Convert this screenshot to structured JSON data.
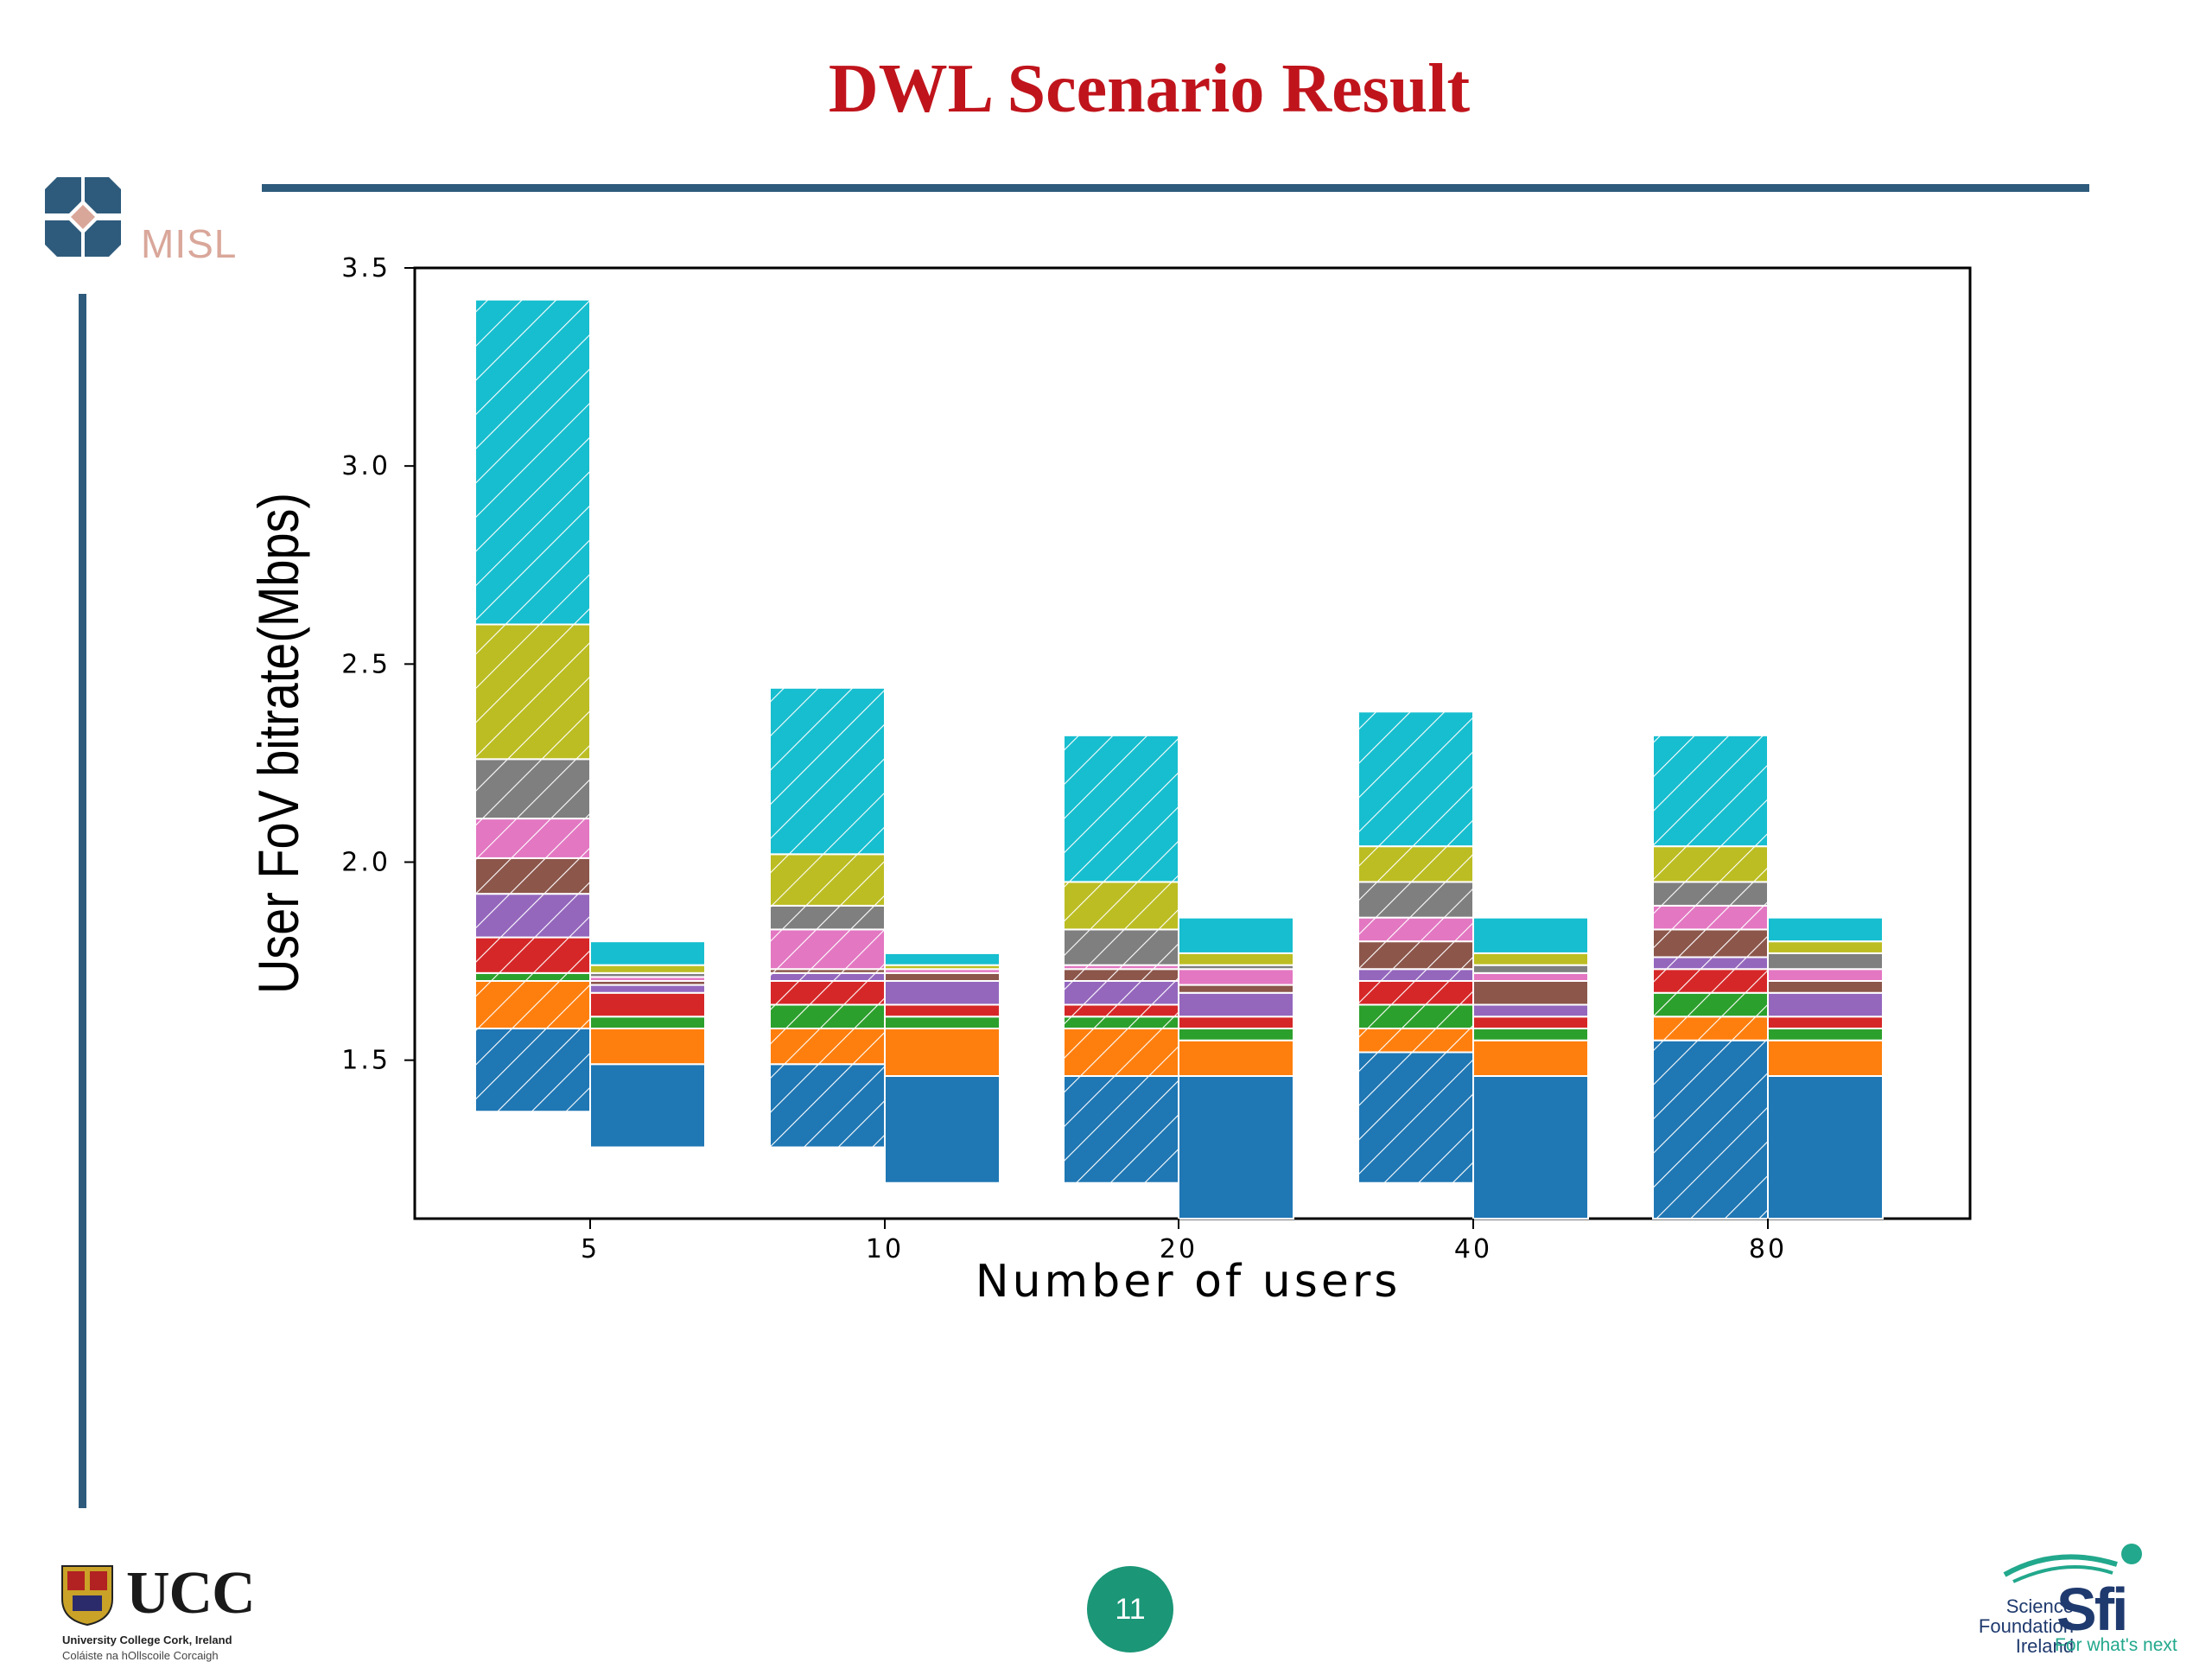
{
  "slide": {
    "title": "DWL Scenario Result",
    "page_number": "11",
    "colors": {
      "title": "#c0141c",
      "rule": "#2e5b7c",
      "page_badge": "#1b9677"
    }
  },
  "logos": {
    "misl": {
      "text": "MISL",
      "icon": "misl-logo-icon"
    },
    "ucc": {
      "text": "UCC",
      "line1": "University College Cork, Ireland",
      "line2": "Coláiste na hOllscoile Corcaigh",
      "icon": "ucc-crest-icon"
    },
    "sfi": {
      "line1": "Science",
      "line2": "Foundation",
      "line3": "Ireland",
      "mark": "Sfi",
      "tagline": "For what's next",
      "icon": "sfi-swoosh-icon"
    }
  },
  "chart_data": {
    "type": "bar",
    "subtype": "stacked-floating-grouped",
    "xlabel": "Number of users",
    "ylabel": "User FoV bitrate(Mbps)",
    "ylim": [
      1.1,
      3.5
    ],
    "yticks": [
      "1.5",
      "2.0",
      "2.5",
      "3.0",
      "3.5"
    ],
    "categories": [
      "5",
      "10",
      "20",
      "40",
      "80"
    ],
    "segment_colors": [
      "#1f77b4",
      "#ff7f0e",
      "#2ca02c",
      "#d62728",
      "#9467bd",
      "#8c564b",
      "#e377c2",
      "#7f7f7f",
      "#bcbd22",
      "#17becf"
    ],
    "groups": [
      {
        "category": "5",
        "hatched": {
          "boundaries": [
            1.37,
            1.58,
            1.7,
            1.72,
            1.81,
            1.92,
            2.01,
            2.11,
            2.26,
            2.6,
            3.42
          ]
        },
        "solid": {
          "boundaries": [
            1.28,
            1.49,
            1.58,
            1.61,
            1.67,
            1.69,
            1.7,
            1.71,
            1.72,
            1.74,
            1.8
          ]
        }
      },
      {
        "category": "10",
        "hatched": {
          "boundaries": [
            1.28,
            1.49,
            1.58,
            1.64,
            1.7,
            1.72,
            1.73,
            1.83,
            1.89,
            2.02,
            2.44
          ]
        },
        "solid": {
          "boundaries": [
            1.19,
            1.46,
            1.58,
            1.61,
            1.64,
            1.7,
            1.72,
            1.73,
            1.73,
            1.74,
            1.77
          ]
        }
      },
      {
        "category": "20",
        "hatched": {
          "boundaries": [
            1.19,
            1.46,
            1.58,
            1.61,
            1.64,
            1.7,
            1.73,
            1.74,
            1.83,
            1.95,
            2.32
          ]
        },
        "solid": {
          "boundaries": [
            1.1,
            1.46,
            1.55,
            1.58,
            1.61,
            1.67,
            1.69,
            1.73,
            1.74,
            1.77,
            1.86
          ]
        }
      },
      {
        "category": "40",
        "hatched": {
          "boundaries": [
            1.19,
            1.52,
            1.58,
            1.64,
            1.7,
            1.73,
            1.8,
            1.86,
            1.95,
            2.04,
            2.38
          ]
        },
        "solid": {
          "boundaries": [
            1.1,
            1.46,
            1.55,
            1.58,
            1.61,
            1.64,
            1.7,
            1.72,
            1.74,
            1.77,
            1.86
          ]
        }
      },
      {
        "category": "80",
        "hatched": {
          "boundaries": [
            1.1,
            1.55,
            1.61,
            1.67,
            1.73,
            1.76,
            1.83,
            1.89,
            1.95,
            2.04,
            2.32
          ]
        },
        "solid": {
          "boundaries": [
            1.1,
            1.46,
            1.55,
            1.58,
            1.61,
            1.67,
            1.7,
            1.73,
            1.77,
            1.8,
            1.86
          ]
        }
      }
    ]
  }
}
